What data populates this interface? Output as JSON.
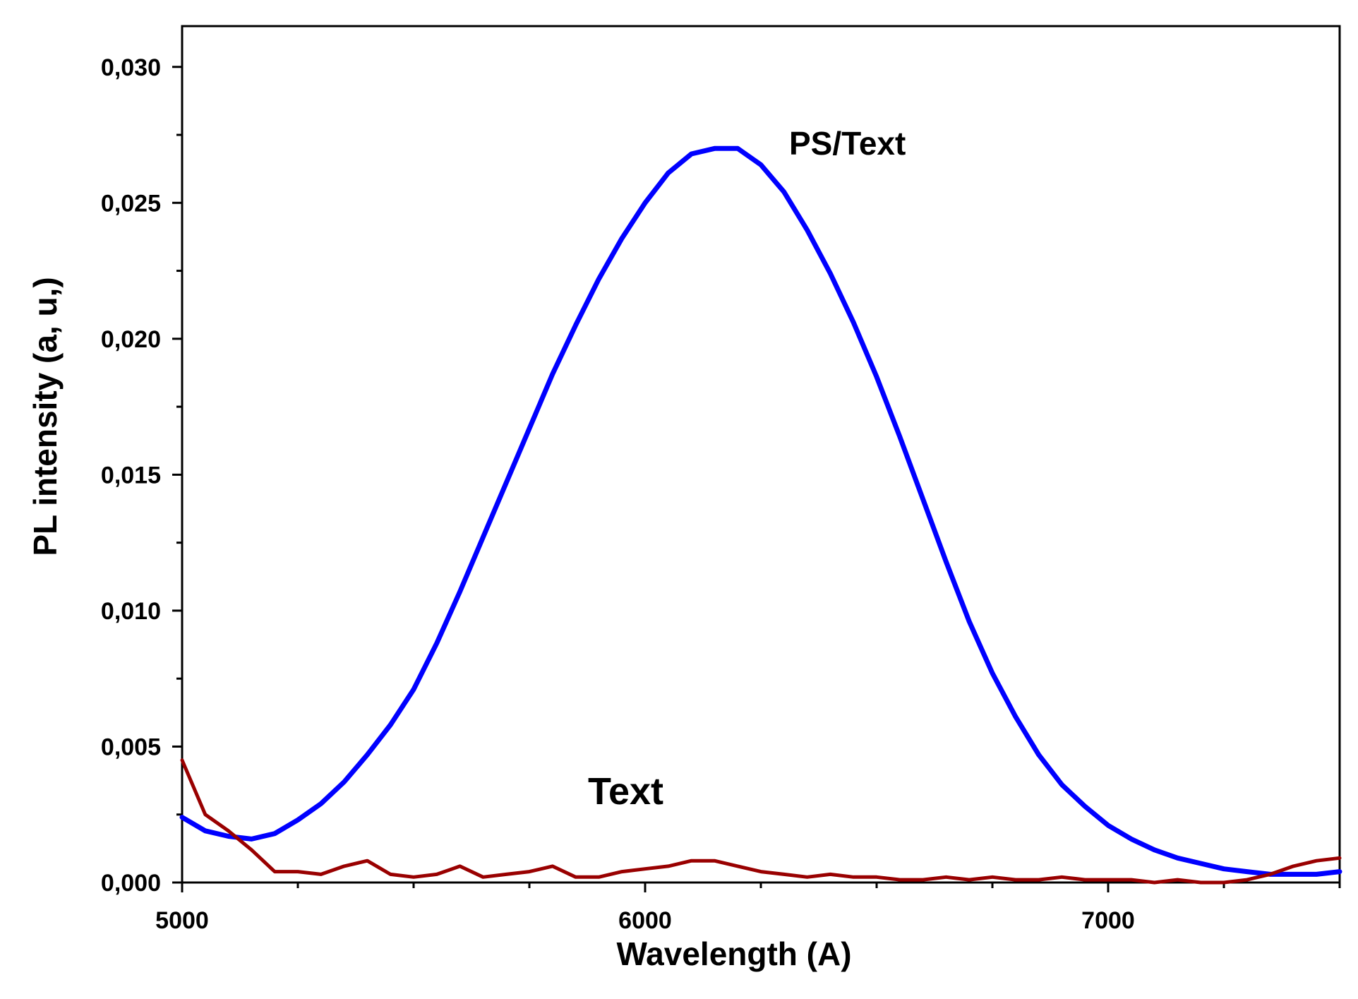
{
  "chart_data": {
    "type": "line",
    "xlabel": "Wavelength (A)",
    "ylabel": "PL intensity (a, u,)",
    "xlim": [
      5000,
      7500
    ],
    "ylim": [
      0,
      0.0315
    ],
    "x_ticks": [
      5000,
      6000,
      7000
    ],
    "x_tick_labels": [
      "5000",
      "6000",
      "7000"
    ],
    "y_ticks": [
      0,
      0.005,
      0.01,
      0.015,
      0.02,
      0.025,
      0.03
    ],
    "y_tick_labels": [
      "0,000",
      "0,005",
      "0,010",
      "0,015",
      "0,020",
      "0,025",
      "0,030"
    ],
    "grid": false,
    "annotations": [
      {
        "text": "PS/Text",
        "series": "PS/Text"
      },
      {
        "text": "Text",
        "series": "Text"
      }
    ],
    "series": [
      {
        "name": "PS/Text",
        "color": "#0000ff",
        "x": [
          5000,
          5050,
          5100,
          5150,
          5200,
          5250,
          5300,
          5350,
          5400,
          5450,
          5500,
          5550,
          5600,
          5650,
          5700,
          5750,
          5800,
          5850,
          5900,
          5950,
          6000,
          6050,
          6100,
          6150,
          6200,
          6250,
          6300,
          6350,
          6400,
          6450,
          6500,
          6550,
          6600,
          6650,
          6700,
          6750,
          6800,
          6850,
          6900,
          6950,
          7000,
          7050,
          7100,
          7150,
          7200,
          7250,
          7300,
          7350,
          7400,
          7450,
          7500
        ],
        "y": [
          0.0024,
          0.0019,
          0.0017,
          0.0016,
          0.0018,
          0.0023,
          0.0029,
          0.0037,
          0.0047,
          0.0058,
          0.0071,
          0.0088,
          0.0107,
          0.0127,
          0.0147,
          0.0167,
          0.0187,
          0.0205,
          0.0222,
          0.0237,
          0.025,
          0.0261,
          0.0268,
          0.027,
          0.027,
          0.0264,
          0.0254,
          0.024,
          0.0224,
          0.0206,
          0.0186,
          0.0164,
          0.0141,
          0.0118,
          0.0096,
          0.0077,
          0.0061,
          0.0047,
          0.0036,
          0.0028,
          0.0021,
          0.0016,
          0.0012,
          0.0009,
          0.0007,
          0.0005,
          0.0004,
          0.0003,
          0.0003,
          0.0003,
          0.0004
        ]
      },
      {
        "name": "Text",
        "color": "#990000",
        "x": [
          5000,
          5050,
          5100,
          5150,
          5200,
          5250,
          5300,
          5350,
          5400,
          5450,
          5500,
          5550,
          5600,
          5650,
          5700,
          5750,
          5800,
          5850,
          5900,
          5950,
          6000,
          6050,
          6100,
          6150,
          6200,
          6250,
          6300,
          6350,
          6400,
          6450,
          6500,
          6550,
          6600,
          6650,
          6700,
          6750,
          6800,
          6850,
          6900,
          6950,
          7000,
          7050,
          7100,
          7150,
          7200,
          7250,
          7300,
          7350,
          7400,
          7450,
          7500
        ],
        "y": [
          0.0045,
          0.0025,
          0.0019,
          0.0012,
          0.0004,
          0.0004,
          0.0003,
          0.0006,
          0.0008,
          0.0003,
          0.0002,
          0.0003,
          0.0006,
          0.0002,
          0.0003,
          0.0004,
          0.0006,
          0.0002,
          0.0002,
          0.0004,
          0.0005,
          0.0006,
          0.0008,
          0.0008,
          0.0006,
          0.0004,
          0.0003,
          0.0002,
          0.0003,
          0.0002,
          0.0002,
          0.0001,
          0.0001,
          0.0002,
          0.0001,
          0.0002,
          0.0001,
          0.0001,
          0.0002,
          0.0001,
          0.0001,
          0.0001,
          0.0,
          0.0001,
          0.0,
          0.0,
          0.0001,
          0.0003,
          0.0006,
          0.0008,
          0.0009
        ]
      }
    ]
  }
}
